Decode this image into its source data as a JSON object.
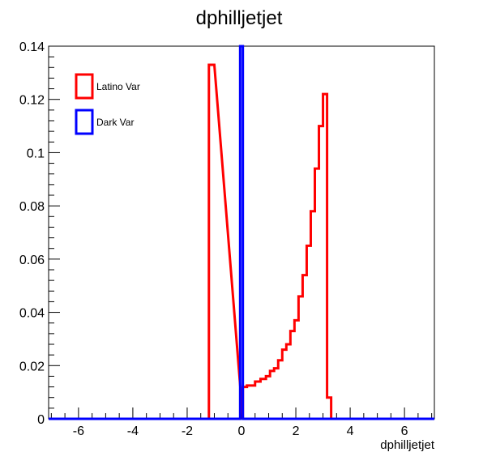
{
  "chart_data": {
    "type": "histogram",
    "title": "dphilljetjet",
    "xlabel": "dphilljetjet",
    "ylabel": "",
    "xlim": [
      -7.1,
      7.1
    ],
    "ylim": [
      0,
      0.14
    ],
    "xticks": [
      "-6",
      "-4",
      "-2",
      "0",
      "2",
      "4",
      "6"
    ],
    "yticks": [
      "0",
      "0.02",
      "0.04",
      "0.06",
      "0.08",
      "0.1",
      "0.12",
      "0.14"
    ],
    "legend_position": "top-left",
    "grid": false,
    "series": [
      {
        "name": "Latino Var",
        "color": "#ff0000",
        "bins": [
          {
            "x0": -1.2,
            "x1": -1.0,
            "y": 0.133
          },
          {
            "x0": 0.05,
            "x1": 0.2,
            "y": 0.012
          },
          {
            "x0": 0.2,
            "x1": 0.5,
            "y": 0.0125
          },
          {
            "x0": 0.5,
            "x1": 0.7,
            "y": 0.014
          },
          {
            "x0": 0.7,
            "x1": 0.9,
            "y": 0.015
          },
          {
            "x0": 0.9,
            "x1": 1.05,
            "y": 0.016
          },
          {
            "x0": 1.05,
            "x1": 1.2,
            "y": 0.018
          },
          {
            "x0": 1.2,
            "x1": 1.35,
            "y": 0.019
          },
          {
            "x0": 1.35,
            "x1": 1.5,
            "y": 0.022
          },
          {
            "x0": 1.5,
            "x1": 1.65,
            "y": 0.026
          },
          {
            "x0": 1.65,
            "x1": 1.8,
            "y": 0.028
          },
          {
            "x0": 1.8,
            "x1": 1.95,
            "y": 0.033
          },
          {
            "x0": 1.95,
            "x1": 2.1,
            "y": 0.037
          },
          {
            "x0": 2.1,
            "x1": 2.25,
            "y": 0.046
          },
          {
            "x0": 2.25,
            "x1": 2.4,
            "y": 0.054
          },
          {
            "x0": 2.4,
            "x1": 2.55,
            "y": 0.065
          },
          {
            "x0": 2.55,
            "x1": 2.7,
            "y": 0.078
          },
          {
            "x0": 2.7,
            "x1": 2.85,
            "y": 0.094
          },
          {
            "x0": 2.85,
            "x1": 3.0,
            "y": 0.11
          },
          {
            "x0": 3.0,
            "x1": 3.15,
            "y": 0.122
          },
          {
            "x0": 3.15,
            "x1": 3.3,
            "y": 0.008
          }
        ]
      },
      {
        "name": "Dark Var",
        "color": "#0000ff",
        "bins": [
          {
            "x0": -0.05,
            "x1": 0.05,
            "y": 0.14
          }
        ]
      }
    ]
  }
}
